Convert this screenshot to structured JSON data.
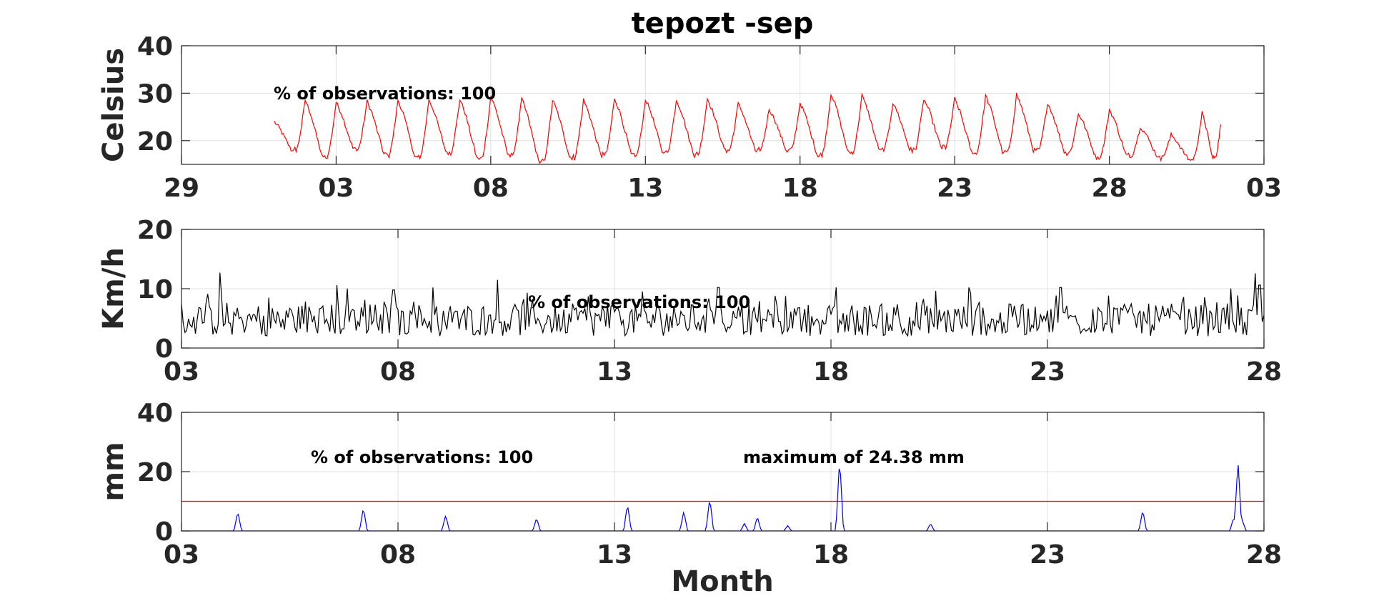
{
  "title": "tepozt -sep",
  "xlabel": "Month",
  "colors": {
    "temperature": "#ff0000",
    "wind": "#000000",
    "precipitation": "#0000ff",
    "threshold": "#ff0000",
    "axis": "#262626",
    "grid": "#e0e0e0"
  },
  "chart_data": [
    {
      "type": "line",
      "ylabel": "Celsius",
      "ylim": [
        15,
        40
      ],
      "yticks": [
        20,
        30,
        40
      ],
      "ytick_labels": [
        "20",
        "30",
        "40"
      ],
      "xlim": [
        0,
        35
      ],
      "xticks": [
        0,
        5,
        10,
        15,
        20,
        25,
        30,
        35
      ],
      "xtick_labels": [
        "29",
        "03",
        "08",
        "13",
        "18",
        "23",
        "28",
        "03"
      ],
      "grid": true,
      "annotation": "% of observations: 100",
      "series": [
        {
          "color": "#ff0000",
          "daily_peaks": [
            [
              3.0,
              24.0,
              18.0
            ],
            [
              4.0,
              28.6,
              16.5
            ],
            [
              5.0,
              28.1,
              18.2
            ],
            [
              6.0,
              28.3,
              17.0
            ],
            [
              7.0,
              28.6,
              16.4
            ],
            [
              8.0,
              28.7,
              17.6
            ],
            [
              9.0,
              28.8,
              16.2
            ],
            [
              10.0,
              29.4,
              17.0
            ],
            [
              11.0,
              28.8,
              15.5
            ],
            [
              12.0,
              28.6,
              16.5
            ],
            [
              13.0,
              28.6,
              17.0
            ],
            [
              14.0,
              29.0,
              16.8
            ],
            [
              15.0,
              28.8,
              17.6
            ],
            [
              16.0,
              28.7,
              17.2
            ],
            [
              17.0,
              28.9,
              18.0
            ],
            [
              18.0,
              27.8,
              17.8
            ],
            [
              19.0,
              26.7,
              17.9
            ],
            [
              20.0,
              28.0,
              17.0
            ],
            [
              21.0,
              30.0,
              17.5
            ],
            [
              22.0,
              29.5,
              18.0
            ],
            [
              23.0,
              28.0,
              18.0
            ],
            [
              24.0,
              28.8,
              18.6
            ],
            [
              25.0,
              28.8,
              17.4
            ],
            [
              26.0,
              29.5,
              17.4
            ],
            [
              27.0,
              29.8,
              17.8
            ],
            [
              28.0,
              28.0,
              17.5
            ],
            [
              29.0,
              25.8,
              16.6
            ],
            [
              30.0,
              26.6,
              16.8
            ],
            [
              31.0,
              23.0,
              16.6
            ],
            [
              32.0,
              21.2,
              16.0
            ],
            [
              33.0,
              25.8,
              16.4
            ],
            [
              33.6,
              23.4,
              23.4
            ]
          ]
        }
      ]
    },
    {
      "type": "line",
      "ylabel": "Km/h",
      "ylim": [
        0,
        20
      ],
      "yticks": [
        0,
        10,
        20
      ],
      "ytick_labels": [
        "0",
        "10",
        "20"
      ],
      "xlim": [
        0,
        25
      ],
      "xticks": [
        0,
        5,
        10,
        15,
        20,
        25
      ],
      "xtick_labels": [
        "03",
        "08",
        "13",
        "18",
        "23",
        "28"
      ],
      "grid": true,
      "annotation": "% of observations: 100",
      "series": [
        {
          "color": "#000000",
          "x_start": 0,
          "x_end": 25,
          "spikes": [
            [
              0.9,
              12.7
            ],
            [
              3.6,
              10.6
            ],
            [
              4.9,
              9.8
            ],
            [
              5.8,
              10.2
            ],
            [
              7.3,
              11.5
            ],
            [
              12.4,
              10.2
            ],
            [
              18.2,
              10.2
            ],
            [
              20.3,
              10.2
            ],
            [
              24.8,
              12.6
            ],
            [
              24.9,
              10.6
            ]
          ]
        }
      ]
    },
    {
      "type": "line",
      "ylabel": "mm",
      "ylim": [
        0,
        40
      ],
      "yticks": [
        0,
        20,
        40
      ],
      "ytick_labels": [
        "0",
        "20",
        "40"
      ],
      "xlim": [
        0,
        25
      ],
      "xticks": [
        0,
        5,
        10,
        15,
        20,
        25
      ],
      "xtick_labels": [
        "03",
        "08",
        "13",
        "18",
        "23",
        "28"
      ],
      "grid": true,
      "annotation": "% of observations: 100",
      "max_annotation": "maximum of 24.38 mm",
      "threshold": 10,
      "series": [
        {
          "color": "#0000ff",
          "spikes": [
            [
              1.3,
              6.5
            ],
            [
              4.2,
              7.8
            ],
            [
              6.1,
              5.3
            ],
            [
              8.2,
              4.3
            ],
            [
              10.3,
              9.0
            ],
            [
              11.6,
              6.6
            ],
            [
              12.2,
              11.0
            ],
            [
              13.0,
              2.5
            ],
            [
              13.3,
              4.8
            ],
            [
              14.0,
              1.8
            ],
            [
              15.2,
              24.38
            ],
            [
              17.3,
              2.5
            ],
            [
              22.2,
              7.0
            ],
            [
              24.3,
              4.5
            ],
            [
              24.4,
              23.8
            ],
            [
              24.5,
              3.5
            ]
          ]
        }
      ]
    }
  ]
}
